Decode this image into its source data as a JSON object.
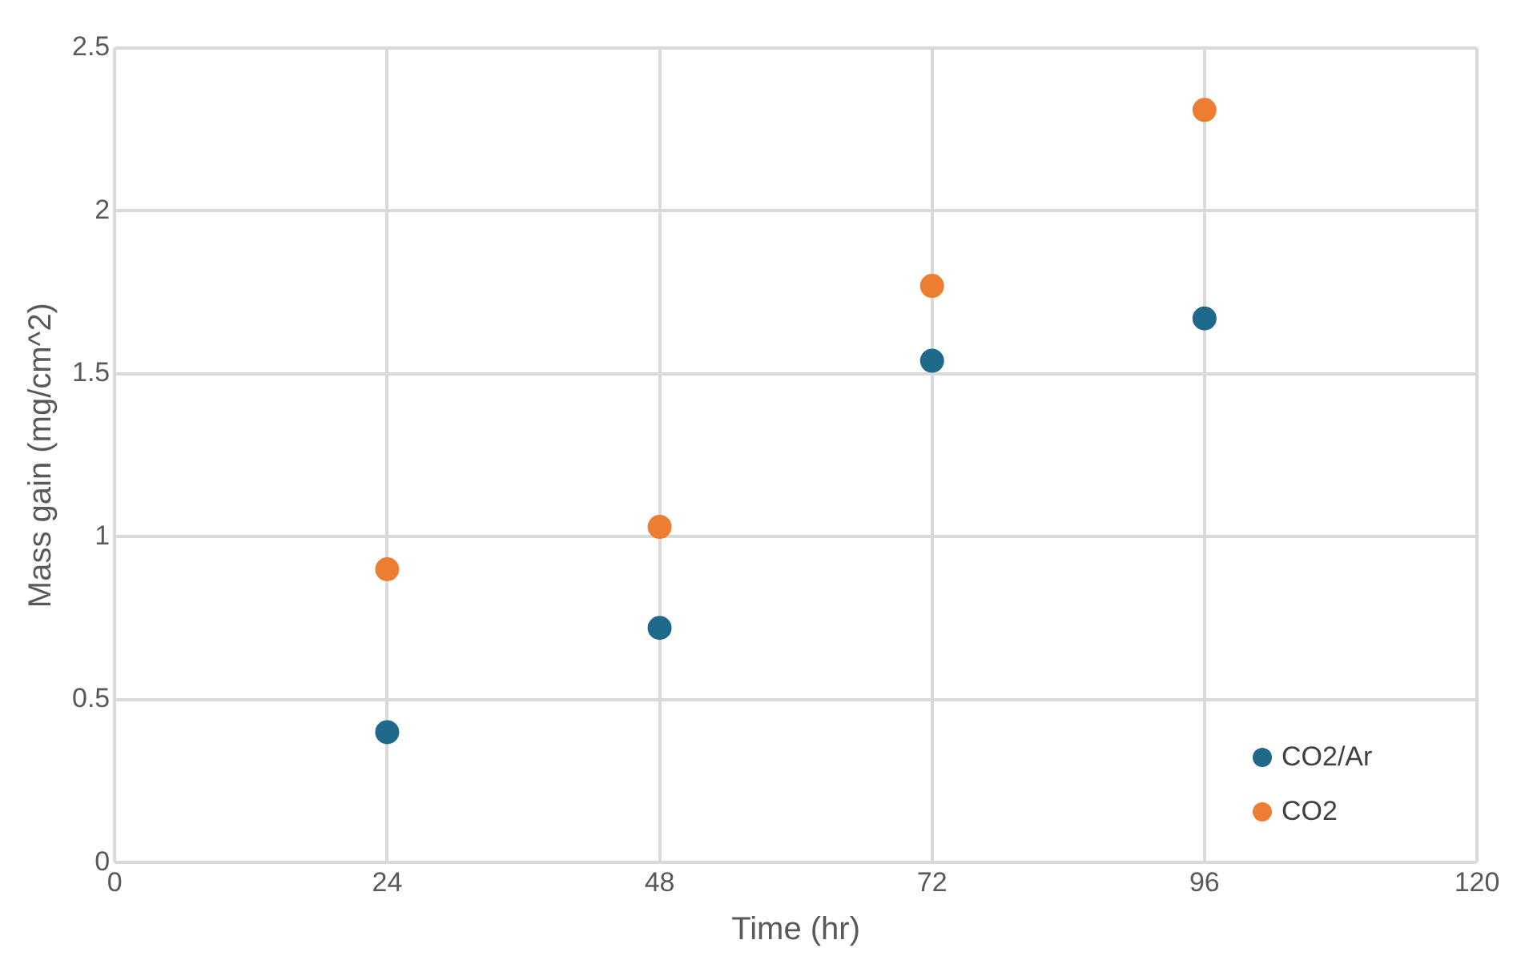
{
  "chart_data": {
    "type": "scatter",
    "xlabel": "Time (hr)",
    "ylabel": "Mass gain (mg/cm^2)",
    "x": [
      24,
      48,
      72,
      96
    ],
    "series": [
      {
        "name": "CO2/Ar",
        "color": "#1f6a8a",
        "values": [
          0.4,
          0.72,
          1.54,
          1.67
        ]
      },
      {
        "name": "CO2",
        "color": "#ed7d31",
        "values": [
          0.9,
          1.03,
          1.77,
          2.31
        ]
      }
    ],
    "xlim": [
      0,
      120
    ],
    "xticks": [
      0,
      24,
      48,
      72,
      96,
      120
    ],
    "ylim": [
      0,
      2.5
    ],
    "yticks": [
      0,
      0.5,
      1,
      1.5,
      2,
      2.5
    ],
    "grid": true,
    "legend": "bottom right",
    "marker": "circle"
  }
}
